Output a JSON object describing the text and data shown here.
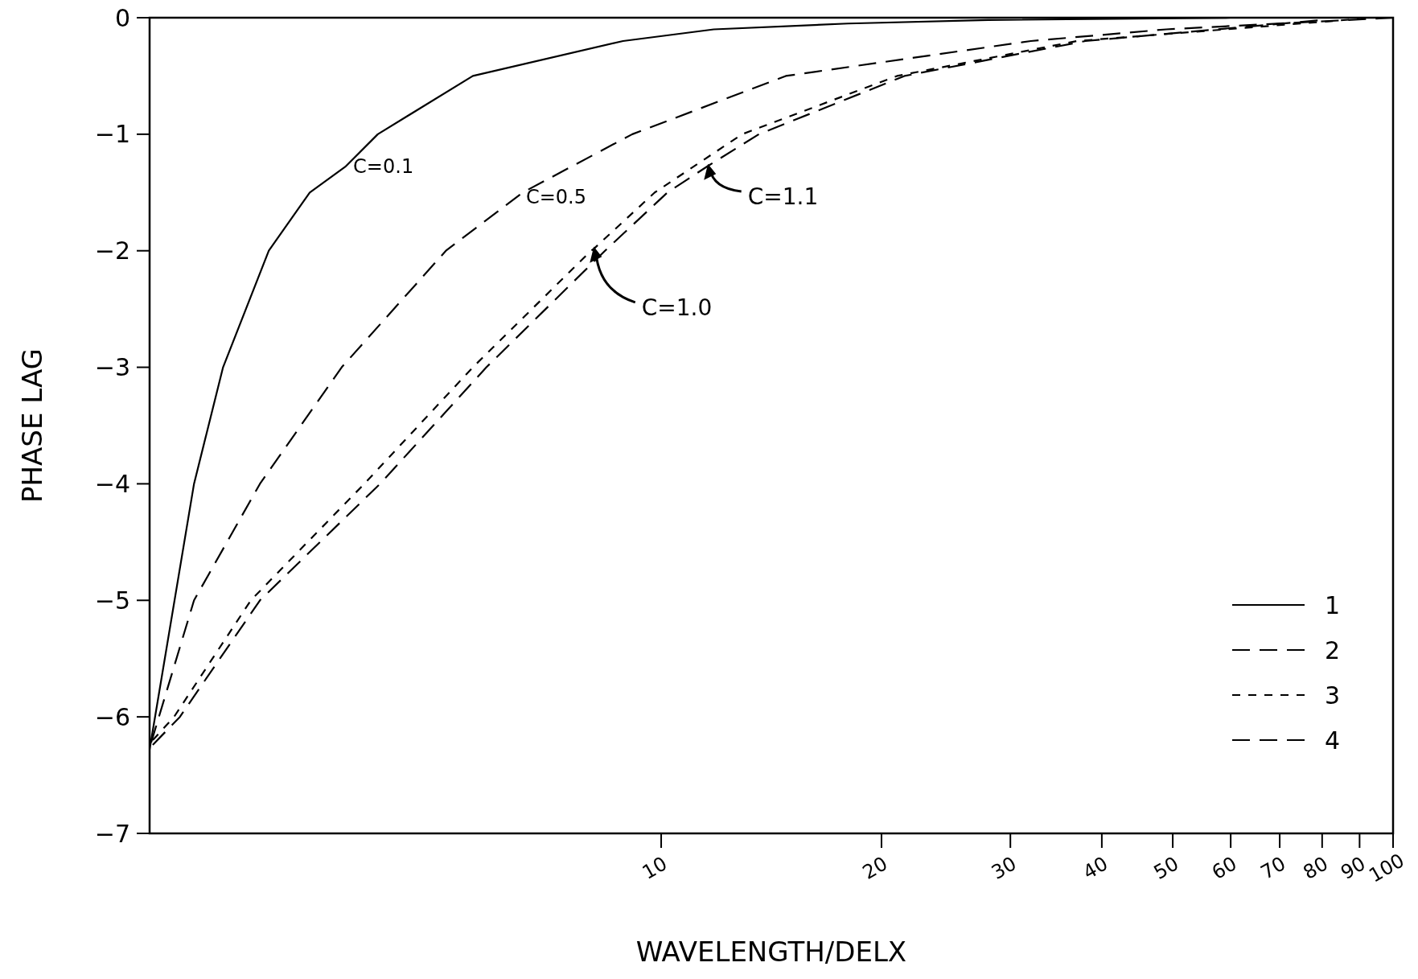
{
  "chart_data": {
    "type": "line",
    "xlabel": "WAVELENGTH/DELX",
    "ylabel": "PHASE LAG",
    "log": "x",
    "xlim": [
      2,
      100
    ],
    "xticks": [
      10,
      20,
      30,
      40,
      50,
      60,
      70,
      80,
      90,
      100
    ],
    "ylim": [
      -7,
      0
    ],
    "yticks": [
      -7,
      -6,
      -5,
      -4,
      -3,
      -2,
      -1,
      0
    ],
    "grid": false,
    "legend": "bottom right",
    "annotations": [
      {
        "text": "C=0.1",
        "x": 3.7,
        "y": -1.28
      },
      {
        "text": "C=0.5",
        "x": 6.47,
        "y": -1.5
      },
      {
        "text": "C=1.1",
        "x": 11.6,
        "y": -1.27
      },
      {
        "text": "C=1.0",
        "x": 8.1,
        "y": -1.98
      }
    ],
    "series": [
      {
        "name": "1",
        "color": "#000000",
        "line_style": "solid",
        "x": [
          2,
          2.3,
          2.52,
          2.91,
          3.31,
          3.7,
          4.1,
          5.53,
          8.87,
          11.8,
          18,
          28,
          60
        ],
        "values": [
          -6.28,
          -4,
          -3,
          -2,
          -1.5,
          -1.28,
          -1,
          -0.5,
          -0.2,
          -0.1,
          -0.05,
          -0.02,
          0
        ]
      },
      {
        "name": "2",
        "color": "#000000",
        "line_style": "dashed",
        "x": [
          2.01,
          2.3,
          2.83,
          3.66,
          5.08,
          6.47,
          9.13,
          14.8,
          32,
          49,
          100
        ],
        "values": [
          -6.22,
          -5,
          -4,
          -3,
          -2,
          -1.5,
          -1,
          -0.5,
          -0.2,
          -0.1,
          0
        ]
      },
      {
        "name": "3",
        "color": "#000000",
        "line_style": "dotted",
        "x": [
          2.02,
          2.16,
          2.75,
          3.93,
          5.53,
          8.02,
          8.1,
          9.8,
          12.9,
          21,
          37,
          90
        ],
        "values": [
          -6.2,
          -6,
          -5,
          -4,
          -3,
          -2,
          -1.98,
          -1.5,
          -1,
          -0.5,
          -0.2,
          -0.01
        ]
      },
      {
        "name": "4",
        "color": "#000000",
        "line_style": "dashed",
        "x": [
          2.02,
          2.2,
          2.83,
          4.13,
          5.77,
          8.38,
          10.2,
          11.6,
          13.6,
          21.5,
          38,
          80
        ],
        "values": [
          -6.24,
          -6,
          -5,
          -4,
          -3,
          -2,
          -1.5,
          -1.27,
          -1,
          -0.5,
          -0.2,
          -0.02
        ]
      }
    ]
  }
}
